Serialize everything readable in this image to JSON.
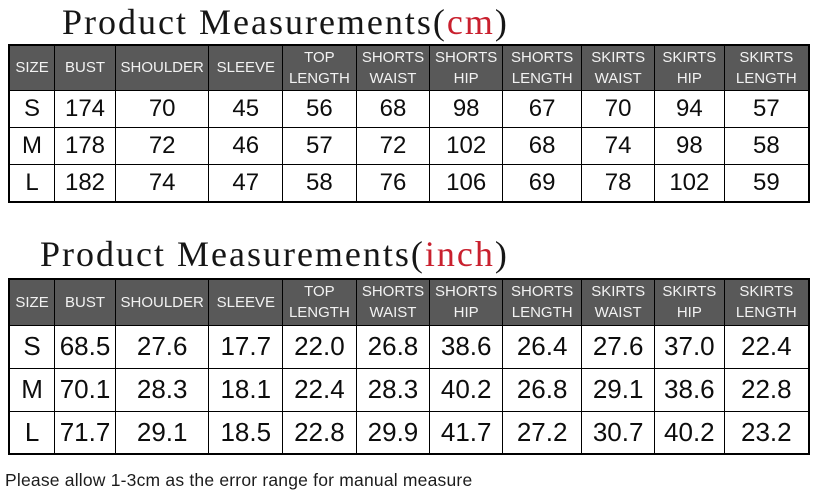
{
  "titles": {
    "prefix": "Product Measurements(",
    "suffix": ")"
  },
  "chart_data": [
    {
      "type": "table",
      "title": "Product Measurements(cm)",
      "unit": "cm",
      "columns": [
        "SIZE",
        "BUST",
        "SHOULDER",
        "SLEEVE",
        "TOP LENGTH",
        "SHORTS WAIST",
        "SHORTS HIP",
        "SHORTS LENGTH",
        "SKIRTS WAIST",
        "SKIRTS HIP",
        "SKIRTS LENGTH"
      ],
      "rows": [
        [
          "S",
          "174",
          "70",
          "45",
          "56",
          "68",
          "98",
          "67",
          "70",
          "94",
          "57"
        ],
        [
          "M",
          "178",
          "72",
          "46",
          "57",
          "72",
          "102",
          "68",
          "74",
          "98",
          "58"
        ],
        [
          "L",
          "182",
          "74",
          "47",
          "58",
          "76",
          "106",
          "69",
          "78",
          "102",
          "59"
        ]
      ]
    },
    {
      "type": "table",
      "title": "Product Measurements(inch)",
      "unit": "inch",
      "columns": [
        "SIZE",
        "BUST",
        "SHOULDER",
        "SLEEVE",
        "TOP LENGTH",
        "SHORTS WAIST",
        "SHORTS HIP",
        "SHORTS LENGTH",
        "SKIRTS WAIST",
        "SKIRTS HIP",
        "SKIRTS LENGTH"
      ],
      "rows": [
        [
          "S",
          "68.5",
          "27.6",
          "17.7",
          "22.0",
          "26.8",
          "38.6",
          "26.4",
          "27.6",
          "37.0",
          "22.4"
        ],
        [
          "M",
          "70.1",
          "28.3",
          "18.1",
          "22.4",
          "28.3",
          "40.2",
          "26.8",
          "29.1",
          "38.6",
          "22.8"
        ],
        [
          "L",
          "71.7",
          "29.1",
          "18.5",
          "22.8",
          "29.9",
          "41.7",
          "27.2",
          "30.7",
          "40.2",
          "23.2"
        ]
      ]
    }
  ],
  "footer": {
    "note": "Please allow 1-3cm as the error range for manual measure"
  },
  "colors": {
    "header_bg": "#595959",
    "header_text": "#f2f2f2",
    "accent_red": "#c9202e",
    "border": "#000000"
  }
}
